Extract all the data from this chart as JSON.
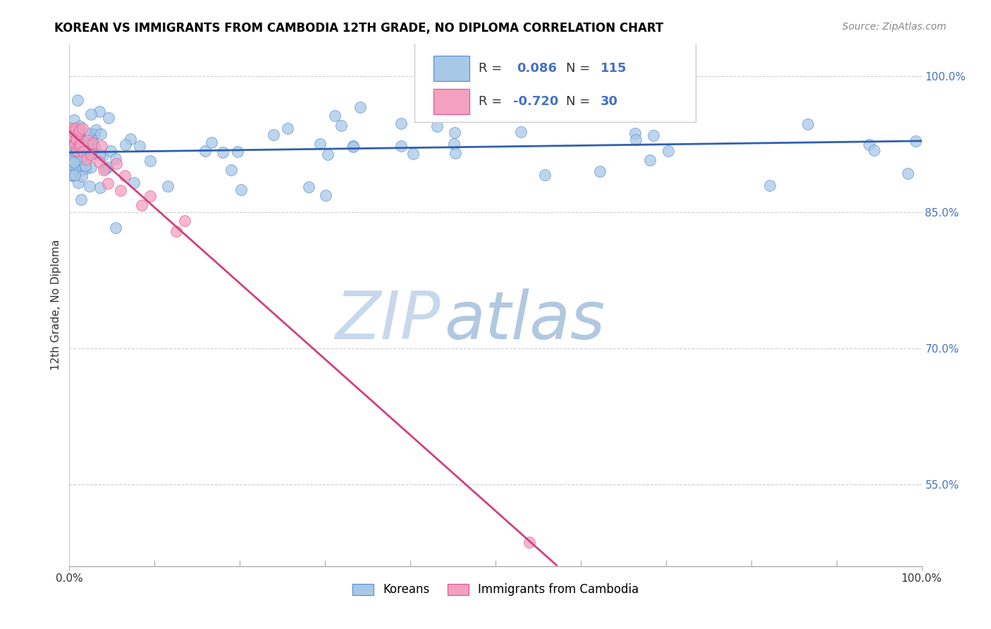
{
  "title": "KOREAN VS IMMIGRANTS FROM CAMBODIA 12TH GRADE, NO DIPLOMA CORRELATION CHART",
  "source": "Source: ZipAtlas.com",
  "ylabel": "12th Grade, No Diploma",
  "xlim": [
    0,
    1
  ],
  "ylim": [
    0.46,
    1.035
  ],
  "right_yticks": [
    1.0,
    0.85,
    0.7,
    0.55
  ],
  "right_yticklabels": [
    "100.0%",
    "85.0%",
    "70.0%",
    "55.0%"
  ],
  "korean_R": 0.086,
  "korean_N": 115,
  "cambodia_R": -0.72,
  "cambodia_N": 30,
  "korean_color": "#a8c8e8",
  "cambodia_color": "#f4a0c0",
  "korean_edge_color": "#5588cc",
  "cambodia_edge_color": "#e05090",
  "korean_line_color": "#3060b0",
  "cambodia_line_color": "#d04080",
  "legend_korean": "Koreans",
  "legend_cambodia": "Immigrants from Cambodia",
  "watermark_zip": "ZIP",
  "watermark_atlas": "atlas",
  "grid_color": "#cccccc",
  "title_fontsize": 12,
  "source_fontsize": 10
}
